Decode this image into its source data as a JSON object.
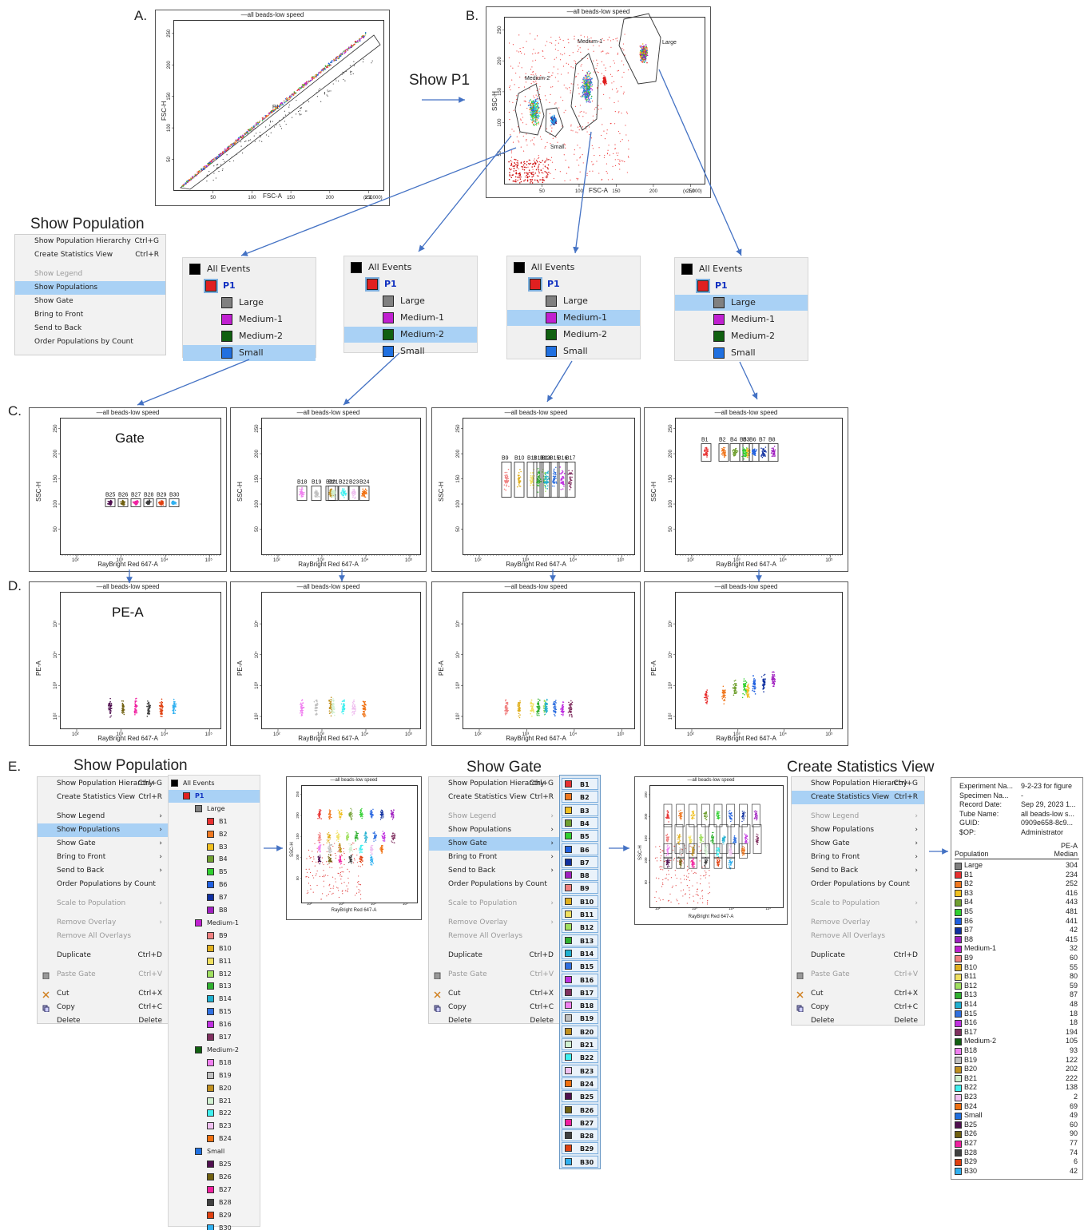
{
  "labels": {
    "a": "A.",
    "b": "B.",
    "c": "C.",
    "d": "D.",
    "e": "E."
  },
  "show_p1": "Show P1",
  "panel_titles": {
    "show_population": "Show Population",
    "show_population_e": "Show Population",
    "show_gate": "Show Gate",
    "create_stats": "Create Statistics View"
  },
  "plot_a": {
    "title": "—all beads-low speed",
    "xlabel": "FSC-A",
    "ylabel": "FSC-H",
    "gate": "P1",
    "xticks": [
      "50",
      "100",
      "150",
      "200",
      "250"
    ],
    "yticks": [
      "50",
      "100",
      "150",
      "200",
      "250"
    ],
    "scale": "(x 1,000)"
  },
  "plot_b": {
    "title": "—all beads-low speed",
    "xlabel": "FSC-A",
    "ylabel": "SSC-H",
    "xticks": [
      "50",
      "100",
      "150",
      "200",
      "250"
    ],
    "yticks": [
      "50",
      "100",
      "150",
      "200",
      "250"
    ],
    "scale": "(x 1,000)",
    "gates": {
      "large": "Large",
      "medium1": "Medium-1",
      "medium2": "Medium-2",
      "small": "Small"
    }
  },
  "menu_small": {
    "items": [
      {
        "label": "Show Population Hierarchy",
        "sc": "Ctrl+G"
      },
      {
        "label": "Create Statistics View",
        "sc": "Ctrl+R"
      },
      {
        "sep": true
      },
      {
        "label": "Show Legend",
        "dis": true
      },
      {
        "label": "Show Populations",
        "sel": true
      },
      {
        "label": "Show Gate"
      },
      {
        "label": "Bring to Front"
      },
      {
        "label": "Send to Back"
      },
      {
        "label": "Order Populations by Count"
      }
    ]
  },
  "trees": [
    {
      "sel": "Small",
      "items": [
        "All Events",
        "P1",
        "Large",
        "Medium-1",
        "Medium-2",
        "Small"
      ]
    },
    {
      "sel": "Medium-2",
      "items": [
        "All Events",
        "P1",
        "Large",
        "Medium-1",
        "Medium-2",
        "Small"
      ]
    },
    {
      "sel": "Medium-1",
      "items": [
        "All Events",
        "P1",
        "Large",
        "Medium-1",
        "Medium-2",
        "Small"
      ]
    },
    {
      "sel": "Large",
      "items": [
        "All Events",
        "P1",
        "Large",
        "Medium-1",
        "Medium-2",
        "Small"
      ]
    }
  ],
  "row_c": {
    "title": "—all beads-low speed",
    "xlabel": "RayBright Red 647-A",
    "ylabel": "SSC-H",
    "yscale": "(x 1,000)",
    "yticks": [
      "50",
      "100",
      "150",
      "200",
      "250"
    ],
    "xticks": [
      "10²",
      "10³",
      "10⁴",
      "10⁵"
    ],
    "gate_text": "Gate",
    "plots": [
      {
        "beads": [
          "B25",
          "B26",
          "B27",
          "B28",
          "B29",
          "B30"
        ]
      },
      {
        "beads": [
          "B18",
          "B19",
          "B20",
          "B21",
          "B22",
          "B23",
          "B24"
        ]
      },
      {
        "beads": [
          "B9",
          "B10",
          "B11",
          "B12",
          "B13",
          "B14",
          "B15",
          "B16",
          "B17"
        ]
      },
      {
        "beads": [
          "B1",
          "B2",
          "B3",
          "B4",
          "B5",
          "B6",
          "B7",
          "B8"
        ]
      }
    ]
  },
  "row_d": {
    "title": "—all beads-low speed",
    "xlabel": "RayBright Red 647-A",
    "ylabel": "PE-A",
    "pe_text": "PE-A",
    "yticks": [
      "10²",
      "10³",
      "10⁴",
      "10⁵"
    ],
    "xticks": [
      "10²",
      "10³",
      "10⁴",
      "10⁵"
    ]
  },
  "menu_big": {
    "items": [
      {
        "label": "Show Population Hierarchy",
        "sc": "Ctrl+G"
      },
      {
        "label": "Create Statistics View",
        "sc": "Ctrl+R"
      },
      {
        "sep": true
      },
      {
        "label": "Show Legend",
        "dis": true
      },
      {
        "label": "Show Populations"
      },
      {
        "label": "Show Gate"
      },
      {
        "label": "Bring to Front"
      },
      {
        "label": "Send to Back"
      },
      {
        "label": "Order Populations by Count"
      },
      {
        "sep": true
      },
      {
        "label": "Scale to Population",
        "dis": true
      },
      {
        "sep": true
      },
      {
        "label": "Remove Overlay",
        "dis": true
      },
      {
        "label": "Remove All Overlays",
        "dis": true
      },
      {
        "sep": true
      },
      {
        "label": "Duplicate",
        "sc": "Ctrl+D"
      },
      {
        "sep": true
      },
      {
        "label": "Paste Gate",
        "sc": "Ctrl+V",
        "dis": true,
        "icon": "paste-icon"
      },
      {
        "sep": true
      },
      {
        "label": "Cut",
        "sc": "Ctrl+X",
        "icon": "cut-icon"
      },
      {
        "label": "Copy",
        "sc": "Ctrl+C",
        "icon": "copy-icon"
      },
      {
        "label": "Delete",
        "sc": "Delete"
      }
    ]
  },
  "e_population_tree": [
    {
      "n": "All Events",
      "c": "#000000",
      "l": 0
    },
    {
      "n": "P1",
      "c": "#e02020",
      "l": 1
    },
    {
      "n": "Large",
      "c": "#808080",
      "l": 2
    },
    {
      "n": "B1",
      "c": "#e83030",
      "l": 3
    },
    {
      "n": "B2",
      "c": "#f07820",
      "l": 3
    },
    {
      "n": "B3",
      "c": "#f0c020",
      "l": 3
    },
    {
      "n": "B4",
      "c": "#70a030",
      "l": 3
    },
    {
      "n": "B5",
      "c": "#30d030",
      "l": 3
    },
    {
      "n": "B6",
      "c": "#2060e0",
      "l": 3
    },
    {
      "n": "B7",
      "c": "#1030a0",
      "l": 3
    },
    {
      "n": "B8",
      "c": "#a020c0",
      "l": 3
    },
    {
      "n": "Medium-1",
      "c": "#c020d0",
      "l": 2
    },
    {
      "n": "B9",
      "c": "#f08080",
      "l": 3
    },
    {
      "n": "B10",
      "c": "#e0b020",
      "l": 3
    },
    {
      "n": "B11",
      "c": "#f0e060",
      "l": 3
    },
    {
      "n": "B12",
      "c": "#a0e060",
      "l": 3
    },
    {
      "n": "B13",
      "c": "#30b030",
      "l": 3
    },
    {
      "n": "B14",
      "c": "#20b0d0",
      "l": 3
    },
    {
      "n": "B15",
      "c": "#3070e0",
      "l": 3
    },
    {
      "n": "B16",
      "c": "#c030e0",
      "l": 3
    },
    {
      "n": "B17",
      "c": "#803060",
      "l": 3
    },
    {
      "n": "Medium-2",
      "c": "#106010",
      "l": 2
    },
    {
      "n": "B18",
      "c": "#f080f0",
      "l": 3
    },
    {
      "n": "B19",
      "c": "#c0c0c0",
      "l": 3
    },
    {
      "n": "B20",
      "c": "#c09020",
      "l": 3
    },
    {
      "n": "B21",
      "c": "#d0f0d0",
      "l": 3
    },
    {
      "n": "B22",
      "c": "#40f0f0",
      "l": 3
    },
    {
      "n": "B23",
      "c": "#f0c0f0",
      "l": 3
    },
    {
      "n": "B24",
      "c": "#f07010",
      "l": 3
    },
    {
      "n": "Small",
      "c": "#2070e0",
      "l": 2
    },
    {
      "n": "B25",
      "c": "#501050",
      "l": 3
    },
    {
      "n": "B26",
      "c": "#706010",
      "l": 3
    },
    {
      "n": "B27",
      "c": "#f020a0",
      "l": 3
    },
    {
      "n": "B28",
      "c": "#404040",
      "l": 3
    },
    {
      "n": "B29",
      "c": "#e04010",
      "l": 3
    },
    {
      "n": "B30",
      "c": "#30b0f0",
      "l": 3
    }
  ],
  "gate_list": [
    {
      "n": "B1",
      "c": "#e83030"
    },
    {
      "n": "B2",
      "c": "#f07820"
    },
    {
      "n": "B3",
      "c": "#f0c020"
    },
    {
      "n": "B4",
      "c": "#70a030"
    },
    {
      "n": "B5",
      "c": "#30d030"
    },
    {
      "n": "B6",
      "c": "#2060e0"
    },
    {
      "n": "B7",
      "c": "#1030a0"
    },
    {
      "n": "B8",
      "c": "#a020c0"
    },
    {
      "n": "B9",
      "c": "#f08080"
    },
    {
      "n": "B10",
      "c": "#e0b020"
    },
    {
      "n": "B11",
      "c": "#f0e060"
    },
    {
      "n": "B12",
      "c": "#a0e060"
    },
    {
      "n": "B13",
      "c": "#30b030"
    },
    {
      "n": "B14",
      "c": "#20b0d0"
    },
    {
      "n": "B15",
      "c": "#3070e0"
    },
    {
      "n": "B16",
      "c": "#c030e0"
    },
    {
      "n": "B17",
      "c": "#803060"
    },
    {
      "n": "B18",
      "c": "#f080f0"
    },
    {
      "n": "B19",
      "c": "#c0c0c0"
    },
    {
      "n": "B20",
      "c": "#c09020"
    },
    {
      "n": "B21",
      "c": "#d0f0d0"
    },
    {
      "n": "B22",
      "c": "#40f0f0"
    },
    {
      "n": "B23",
      "c": "#f0c0f0"
    },
    {
      "n": "B24",
      "c": "#f07010"
    },
    {
      "n": "B25",
      "c": "#501050"
    },
    {
      "n": "B26",
      "c": "#706010"
    },
    {
      "n": "B27",
      "c": "#f020a0"
    },
    {
      "n": "B28",
      "c": "#404040"
    },
    {
      "n": "B29",
      "c": "#e04010"
    },
    {
      "n": "B30",
      "c": "#30b0f0"
    }
  ],
  "menu_gate_sel": "Show Gate",
  "menu_stats_sel": "Create Statistics View",
  "stats": {
    "meta": [
      {
        "k": "Experiment Na...",
        "v": "9-2-23 for figure"
      },
      {
        "k": "Specimen Na...",
        "v": "-"
      },
      {
        "k": "Record Date:",
        "v": "Sep 29, 2023 1..."
      },
      {
        "k": "Tube Name:",
        "v": "all beads-low s..."
      },
      {
        "k": "GUID:",
        "v": "0909e658-8c9..."
      },
      {
        "k": "$OP:",
        "v": "Administrator"
      }
    ],
    "col1": "Population",
    "col2a": "PE-A",
    "col2b": "Median",
    "rows": [
      {
        "n": "Large",
        "c": "#808080",
        "v": "304"
      },
      {
        "n": "B1",
        "c": "#e83030",
        "v": "234"
      },
      {
        "n": "B2",
        "c": "#f07820",
        "v": "252"
      },
      {
        "n": "B3",
        "c": "#f0c020",
        "v": "416"
      },
      {
        "n": "B4",
        "c": "#70a030",
        "v": "443"
      },
      {
        "n": "B5",
        "c": "#30d030",
        "v": "481"
      },
      {
        "n": "B6",
        "c": "#2060e0",
        "v": "441"
      },
      {
        "n": "B7",
        "c": "#1030a0",
        "v": "42"
      },
      {
        "n": "B8",
        "c": "#a020c0",
        "v": "415"
      },
      {
        "n": "Medium-1",
        "c": "#c020d0",
        "v": "32"
      },
      {
        "n": "B9",
        "c": "#f08080",
        "v": "60"
      },
      {
        "n": "B10",
        "c": "#e0b020",
        "v": "55"
      },
      {
        "n": "B11",
        "c": "#f0e060",
        "v": "80"
      },
      {
        "n": "B12",
        "c": "#a0e060",
        "v": "59"
      },
      {
        "n": "B13",
        "c": "#30b030",
        "v": "87"
      },
      {
        "n": "B14",
        "c": "#20b0d0",
        "v": "48"
      },
      {
        "n": "B15",
        "c": "#3070e0",
        "v": "18"
      },
      {
        "n": "B16",
        "c": "#c030e0",
        "v": "18"
      },
      {
        "n": "B17",
        "c": "#803060",
        "v": "194"
      },
      {
        "n": "Medium-2",
        "c": "#106010",
        "v": "105"
      },
      {
        "n": "B18",
        "c": "#f080f0",
        "v": "93"
      },
      {
        "n": "B19",
        "c": "#c0c0c0",
        "v": "122"
      },
      {
        "n": "B20",
        "c": "#c09020",
        "v": "202"
      },
      {
        "n": "B21",
        "c": "#d0f0d0",
        "v": "222"
      },
      {
        "n": "B22",
        "c": "#40f0f0",
        "v": "138"
      },
      {
        "n": "B23",
        "c": "#f0c0f0",
        "v": "2"
      },
      {
        "n": "B24",
        "c": "#f07010",
        "v": "69"
      },
      {
        "n": "Small",
        "c": "#2070e0",
        "v": "49"
      },
      {
        "n": "B25",
        "c": "#501050",
        "v": "60"
      },
      {
        "n": "B26",
        "c": "#706010",
        "v": "90"
      },
      {
        "n": "B27",
        "c": "#f020a0",
        "v": "77"
      },
      {
        "n": "B28",
        "c": "#404040",
        "v": "74"
      },
      {
        "n": "B29",
        "c": "#e04010",
        "v": "6"
      },
      {
        "n": "B30",
        "c": "#30b0f0",
        "v": "42"
      }
    ]
  },
  "colors": {
    "p1": "#e02020",
    "large": "#808080",
    "medium1": "#c020d0",
    "medium2": "#106010",
    "small": "#2070e0",
    "select": "#a9d1f5",
    "arrow": "#4472c4"
  }
}
